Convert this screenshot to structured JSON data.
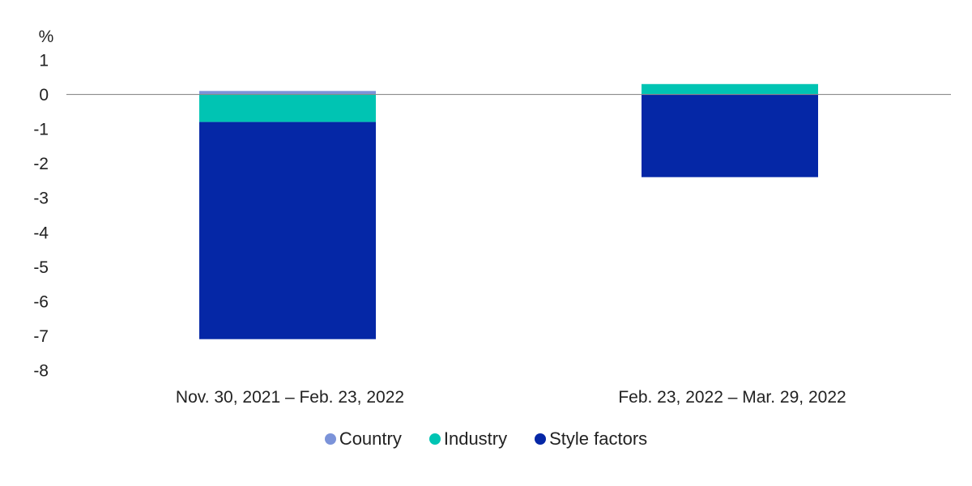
{
  "chart_data": {
    "type": "bar",
    "stacked": true,
    "unit_label": "%",
    "categories": [
      "Nov. 30, 2021 – Feb. 23, 2022",
      "Feb. 23, 2022 – Mar. 29, 2022"
    ],
    "series": [
      {
        "name": "Country",
        "values": [
          0.1,
          0.0
        ],
        "color": "#7b93d9"
      },
      {
        "name": "Industry",
        "values": [
          -0.8,
          0.3
        ],
        "color": "#00c4b3"
      },
      {
        "name": "Style factors",
        "values": [
          -6.3,
          -2.4
        ],
        "color": "#0527a6"
      }
    ],
    "ylim": [
      -8,
      1
    ],
    "yticks": [
      1,
      0,
      -1,
      -2,
      -3,
      -4,
      -5,
      -6,
      -7,
      -8
    ],
    "zero_line": true,
    "grid": false,
    "legend_position": "bottom"
  }
}
